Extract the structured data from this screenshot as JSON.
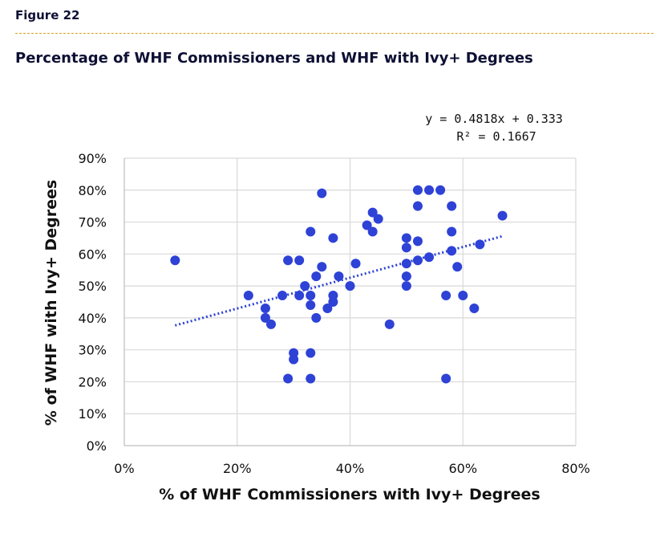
{
  "header": {
    "figure_label": "Figure 22",
    "title": "Percentage of WHF Commissioners and WHF with Ivy+ Degrees"
  },
  "chart_data": {
    "type": "scatter",
    "title": "Percentage of WHF Commissioners and WHF with Ivy+ Degrees",
    "xlabel": "% of WHF Commissioners with Ivy+ Degrees",
    "ylabel": "% of WHF with Ivy+ Degrees",
    "xlim": [
      0,
      0.8
    ],
    "ylim": [
      0,
      0.9
    ],
    "x_ticks": [
      0,
      0.2,
      0.4,
      0.6,
      0.8
    ],
    "y_ticks": [
      0,
      0.1,
      0.2,
      0.3,
      0.4,
      0.5,
      0.6,
      0.7,
      0.8,
      0.9
    ],
    "x_tick_labels": [
      "0%",
      "20%",
      "40%",
      "60%",
      "80%"
    ],
    "y_tick_labels": [
      "0%",
      "10%",
      "20%",
      "30%",
      "40%",
      "50%",
      "60%",
      "70%",
      "80%",
      "90%"
    ],
    "grid": true,
    "point_color": "#2e42d6",
    "trendline": {
      "type": "linear",
      "slope": 0.4818,
      "intercept": 0.333,
      "x_range": [
        0.09,
        0.67
      ],
      "color": "#2e42d6",
      "equation_text": "y = 0.4818x + 0.333",
      "r2_text": "R² = 0.1667"
    },
    "points": [
      [
        0.09,
        0.58
      ],
      [
        0.22,
        0.47
      ],
      [
        0.25,
        0.43
      ],
      [
        0.25,
        0.4
      ],
      [
        0.26,
        0.38
      ],
      [
        0.28,
        0.47
      ],
      [
        0.29,
        0.58
      ],
      [
        0.29,
        0.21
      ],
      [
        0.3,
        0.29
      ],
      [
        0.3,
        0.27
      ],
      [
        0.31,
        0.58
      ],
      [
        0.31,
        0.47
      ],
      [
        0.32,
        0.5
      ],
      [
        0.33,
        0.67
      ],
      [
        0.33,
        0.47
      ],
      [
        0.33,
        0.44
      ],
      [
        0.33,
        0.29
      ],
      [
        0.33,
        0.21
      ],
      [
        0.34,
        0.53
      ],
      [
        0.34,
        0.4
      ],
      [
        0.35,
        0.79
      ],
      [
        0.35,
        0.56
      ],
      [
        0.36,
        0.43
      ],
      [
        0.37,
        0.65
      ],
      [
        0.37,
        0.47
      ],
      [
        0.37,
        0.45
      ],
      [
        0.38,
        0.53
      ],
      [
        0.4,
        0.5
      ],
      [
        0.41,
        0.57
      ],
      [
        0.43,
        0.69
      ],
      [
        0.44,
        0.73
      ],
      [
        0.44,
        0.67
      ],
      [
        0.45,
        0.71
      ],
      [
        0.47,
        0.38
      ],
      [
        0.5,
        0.65
      ],
      [
        0.5,
        0.62
      ],
      [
        0.5,
        0.57
      ],
      [
        0.5,
        0.53
      ],
      [
        0.5,
        0.5
      ],
      [
        0.52,
        0.8
      ],
      [
        0.52,
        0.75
      ],
      [
        0.52,
        0.64
      ],
      [
        0.52,
        0.58
      ],
      [
        0.54,
        0.8
      ],
      [
        0.54,
        0.59
      ],
      [
        0.56,
        0.8
      ],
      [
        0.57,
        0.47
      ],
      [
        0.57,
        0.21
      ],
      [
        0.58,
        0.75
      ],
      [
        0.58,
        0.67
      ],
      [
        0.58,
        0.61
      ],
      [
        0.59,
        0.56
      ],
      [
        0.6,
        0.47
      ],
      [
        0.62,
        0.43
      ],
      [
        0.63,
        0.63
      ],
      [
        0.67,
        0.72
      ]
    ]
  }
}
